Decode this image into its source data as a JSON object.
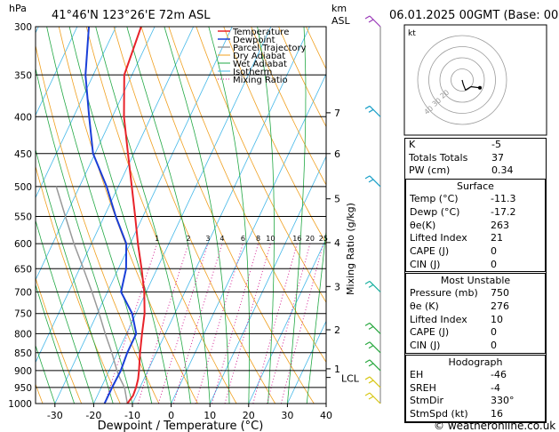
{
  "header": {
    "hpa_unit": "hPa",
    "location": "41°46'N  123°26'E  72m  ASL",
    "km_unit": "km",
    "asl_unit": "ASL",
    "datetime": "06.01.2025  00GMT  (Base: 00)"
  },
  "chart_data": {
    "type": "skewt",
    "title": "41°46'N  123°26'E  72m  ASL",
    "xlabel": "Dewpoint / Temperature (°C)",
    "mixing_ratio_label": "Mixing Ratio (g/kg)",
    "xlim": [
      -35,
      40
    ],
    "pressure_range": [
      300,
      1000
    ],
    "pressure_ticks": [
      "300",
      "350",
      "400",
      "450",
      "500",
      "550",
      "600",
      "650",
      "700",
      "750",
      "800",
      "850",
      "900",
      "950",
      "1000"
    ],
    "temp_ticks": [
      "-30",
      "-20",
      "-10",
      "0",
      "10",
      "20",
      "30",
      "40"
    ],
    "height_ticks": [
      {
        "km": "7",
        "p": 395
      },
      {
        "km": "6",
        "p": 450
      },
      {
        "km": "5",
        "p": 520
      },
      {
        "km": "4",
        "p": 598
      },
      {
        "km": "3",
        "p": 688
      },
      {
        "km": "2",
        "p": 790
      },
      {
        "km": "1",
        "p": 895
      }
    ],
    "lcl_label": "LCL",
    "lcl_pressure": 920,
    "mixing_ratio_values": [
      "1",
      "2",
      "3",
      "4",
      "6",
      "8",
      "10",
      "16",
      "20",
      "25"
    ],
    "legend": [
      "Temperature",
      "Dewpoint",
      "Parcel Trajectory",
      "Dry Adiabat",
      "Wet Adiabat",
      "Isotherm",
      "Mixing Ratio"
    ],
    "series": [
      {
        "name": "Temperature",
        "color": "#e8232a",
        "points": [
          [
            1000,
            -11.3
          ],
          [
            975,
            -10.8
          ],
          [
            950,
            -11.0
          ],
          [
            925,
            -11.5
          ],
          [
            900,
            -12.3
          ],
          [
            850,
            -14.2
          ],
          [
            800,
            -16.0
          ],
          [
            750,
            -17.8
          ],
          [
            700,
            -20.5
          ],
          [
            650,
            -24.0
          ],
          [
            600,
            -28.0
          ],
          [
            550,
            -32.0
          ],
          [
            500,
            -36.5
          ],
          [
            450,
            -41.5
          ],
          [
            400,
            -47.0
          ],
          [
            350,
            -52.0
          ],
          [
            300,
            -53.5
          ]
        ]
      },
      {
        "name": "Dewpoint",
        "color": "#1a3fd8",
        "points": [
          [
            1000,
            -17.2
          ],
          [
            950,
            -17.2
          ],
          [
            900,
            -17.0
          ],
          [
            850,
            -17.5
          ],
          [
            800,
            -17.5
          ],
          [
            750,
            -21.0
          ],
          [
            700,
            -26.5
          ],
          [
            650,
            -28.0
          ],
          [
            600,
            -31.0
          ],
          [
            550,
            -37.0
          ],
          [
            500,
            -43.0
          ],
          [
            450,
            -50.5
          ],
          [
            400,
            -56.0
          ],
          [
            350,
            -62.0
          ],
          [
            300,
            -67.0
          ]
        ]
      },
      {
        "name": "Parcel Trajectory",
        "color": "#999999",
        "points": [
          [
            1000,
            -11.3
          ],
          [
            950,
            -14.0
          ],
          [
            920,
            -16.5
          ],
          [
            900,
            -18.0
          ],
          [
            850,
            -21.5
          ],
          [
            800,
            -25.5
          ],
          [
            750,
            -29.5
          ],
          [
            700,
            -34.0
          ],
          [
            650,
            -39.0
          ],
          [
            600,
            -44.5
          ],
          [
            550,
            -50.0
          ],
          [
            500,
            -56.0
          ]
        ]
      }
    ]
  },
  "legend_colors": {
    "Temperature": "#e8232a",
    "Dewpoint": "#1a3fd8",
    "Parcel Trajectory": "#999999",
    "Dry Adiabat": "#f0a020",
    "Wet Adiabat": "#22a844",
    "Isotherm": "#44b8e8",
    "Mixing Ratio": "#d0108a"
  },
  "hodograph": {
    "unit": "kt",
    "ring_labels": [
      "40",
      "30",
      "20"
    ],
    "points_kt": [
      [
        0,
        0
      ],
      [
        1,
        -4
      ],
      [
        3,
        -9
      ],
      [
        8,
        -6
      ],
      [
        16,
        -7
      ]
    ]
  },
  "indices": {
    "rows": [
      {
        "label": "K",
        "value": "-5"
      },
      {
        "label": "Totals Totals",
        "value": "37"
      },
      {
        "label": "PW (cm)",
        "value": "0.34"
      }
    ],
    "surface_title": "Surface",
    "surface": [
      {
        "label": "Temp (°C)",
        "value": "-11.3"
      },
      {
        "label": "Dewp (°C)",
        "value": "-17.2"
      },
      {
        "label": "θe(K)",
        "value": "263"
      },
      {
        "label": "Lifted Index",
        "value": "21"
      },
      {
        "label": "CAPE (J)",
        "value": "0"
      },
      {
        "label": "CIN (J)",
        "value": "0"
      }
    ],
    "unstable_title": "Most Unstable",
    "unstable": [
      {
        "label": "Pressure (mb)",
        "value": "750"
      },
      {
        "label": "θe (K)",
        "value": "276"
      },
      {
        "label": "Lifted Index",
        "value": "10"
      },
      {
        "label": "CAPE (J)",
        "value": "0"
      },
      {
        "label": "CIN (J)",
        "value": "0"
      }
    ],
    "hodo_title": "Hodograph",
    "hodo": [
      {
        "label": "EH",
        "value": "-46"
      },
      {
        "label": "SREH",
        "value": "-4"
      },
      {
        "label": "StmDir",
        "value": "330°"
      },
      {
        "label": "StmSpd (kt)",
        "value": "16"
      }
    ]
  },
  "wind_barbs": [
    {
      "p": 300,
      "color": "#9a3ab8"
    },
    {
      "p": 400,
      "color": "#1aa0c8"
    },
    {
      "p": 500,
      "color": "#1aa0c8"
    },
    {
      "p": 700,
      "color": "#1ab0a0"
    },
    {
      "p": 800,
      "color": "#2aa840"
    },
    {
      "p": 850,
      "color": "#2aa840"
    },
    {
      "p": 900,
      "color": "#2aa840"
    },
    {
      "p": 950,
      "color": "#d8c818"
    },
    {
      "p": 1000,
      "color": "#d8c818"
    }
  ],
  "footer": {
    "credit": "© weatheronline.co.uk"
  }
}
